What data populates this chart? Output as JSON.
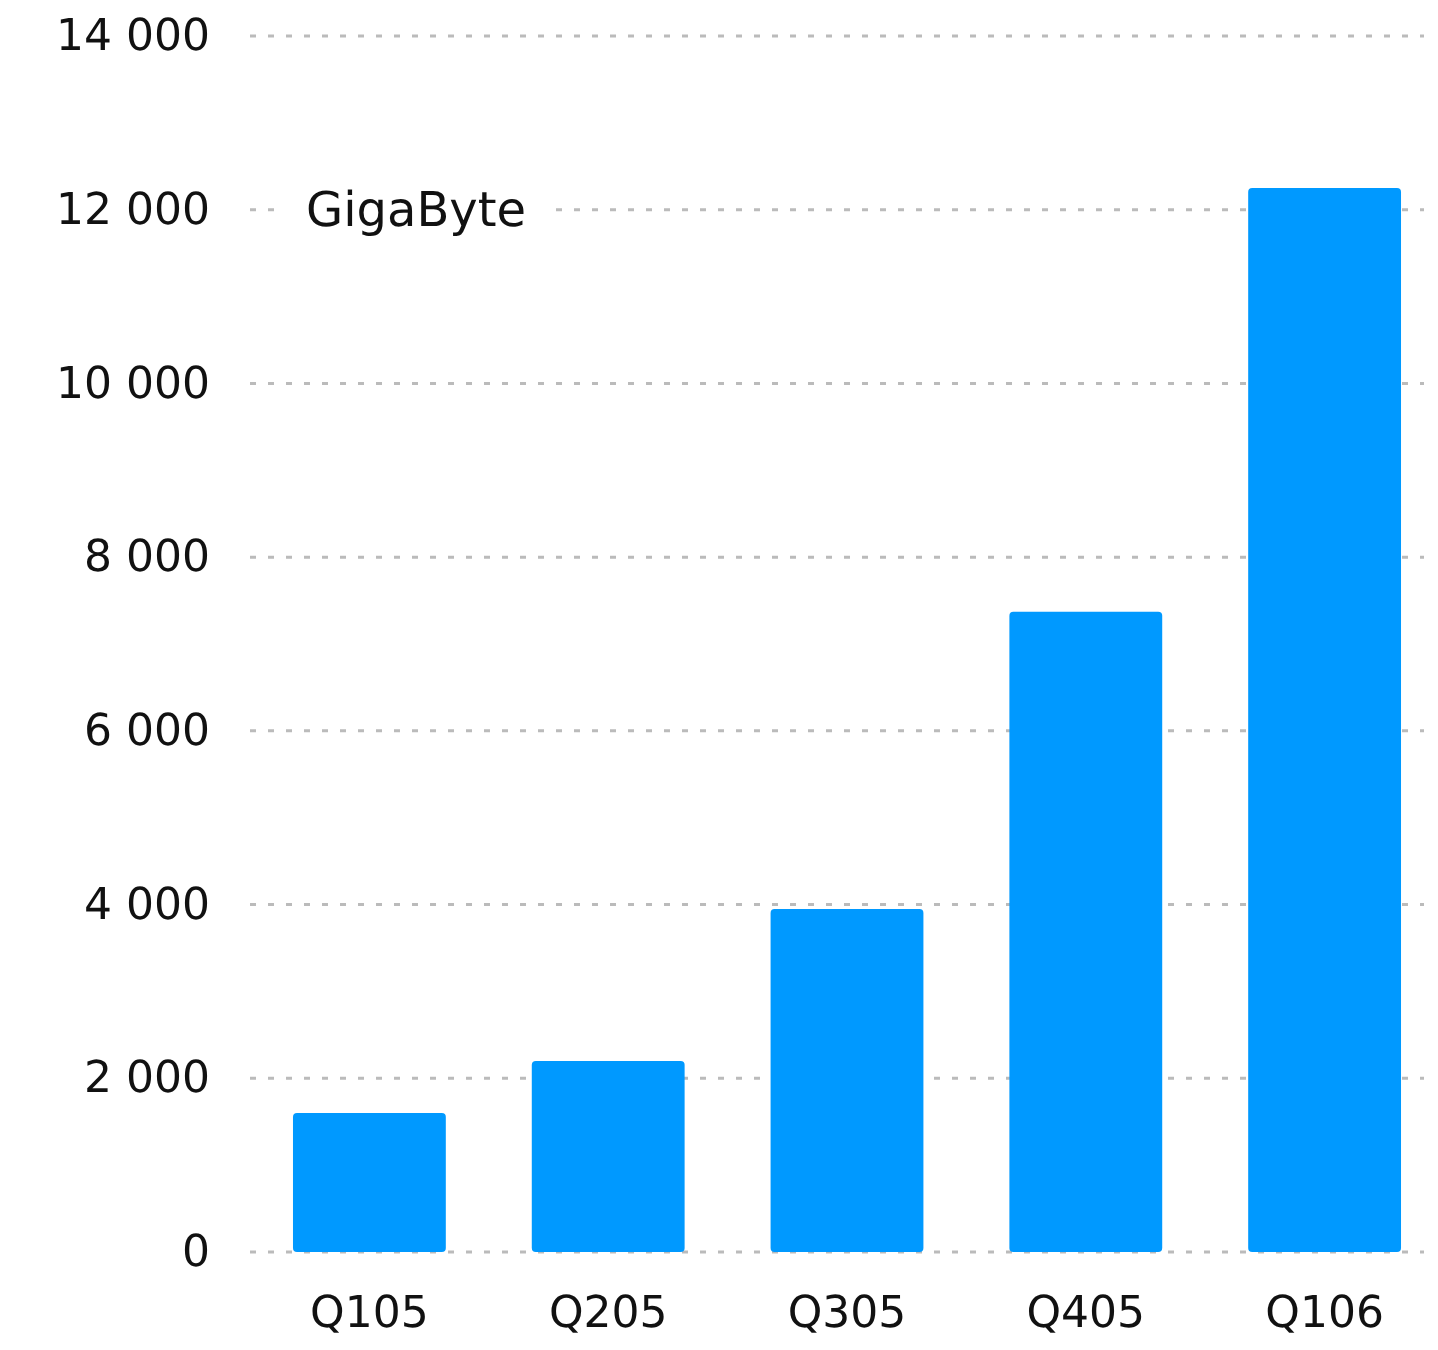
{
  "chart_data": {
    "type": "bar",
    "ylabel": "GigaByte",
    "categories": [
      "Q105",
      "Q205",
      "Q305",
      "Q405",
      "Q106"
    ],
    "values": [
      1600,
      2200,
      3950,
      7370,
      12250
    ],
    "color": "#0099ff",
    "ylim": [
      0,
      14000
    ],
    "yticks": [
      {
        "value": 0,
        "label": "0"
      },
      {
        "value": 2000,
        "label": "2 000"
      },
      {
        "value": 4000,
        "label": "4 000"
      },
      {
        "value": 6000,
        "label": "6 000"
      },
      {
        "value": 8000,
        "label": "8 000"
      },
      {
        "value": 10000,
        "label": "10 000"
      },
      {
        "value": 12000,
        "label": "12 000"
      },
      {
        "value": 14000,
        "label": "14 000"
      }
    ],
    "grid": "y"
  }
}
